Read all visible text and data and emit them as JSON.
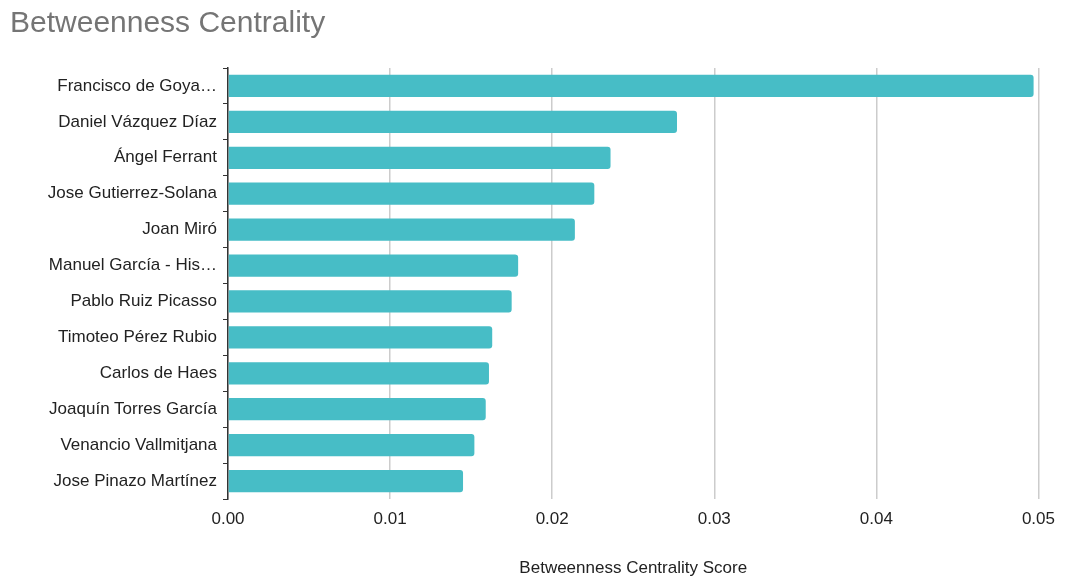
{
  "chart_data": {
    "type": "bar",
    "orientation": "horizontal",
    "title": "Betweenness Centrality",
    "xlabel": "Betweenness Centrality Score",
    "categories": [
      "Francisco de Goya…",
      "Daniel Vázquez Díaz",
      "Ángel Ferrant",
      "Jose Gutierrez-Solana",
      "Joan Miró",
      "Manuel García - His…",
      "Pablo Ruiz Picasso",
      "Timoteo Pérez Rubio",
      "Carlos de Haes",
      "Joaquín Torres García",
      "Venancio Vallmitjana",
      "Jose Pinazo Martínez"
    ],
    "values": [
      0.0497,
      0.0277,
      0.0236,
      0.0226,
      0.0214,
      0.0179,
      0.0175,
      0.0163,
      0.0161,
      0.0159,
      0.0152,
      0.0145
    ],
    "color": "#47bdc6",
    "xlim": [
      0,
      0.05
    ],
    "xticks": [
      {
        "value": 0,
        "label": "0.00"
      },
      0.01,
      0.02,
      0.03,
      0.04,
      0.05
    ],
    "grid": "x"
  }
}
